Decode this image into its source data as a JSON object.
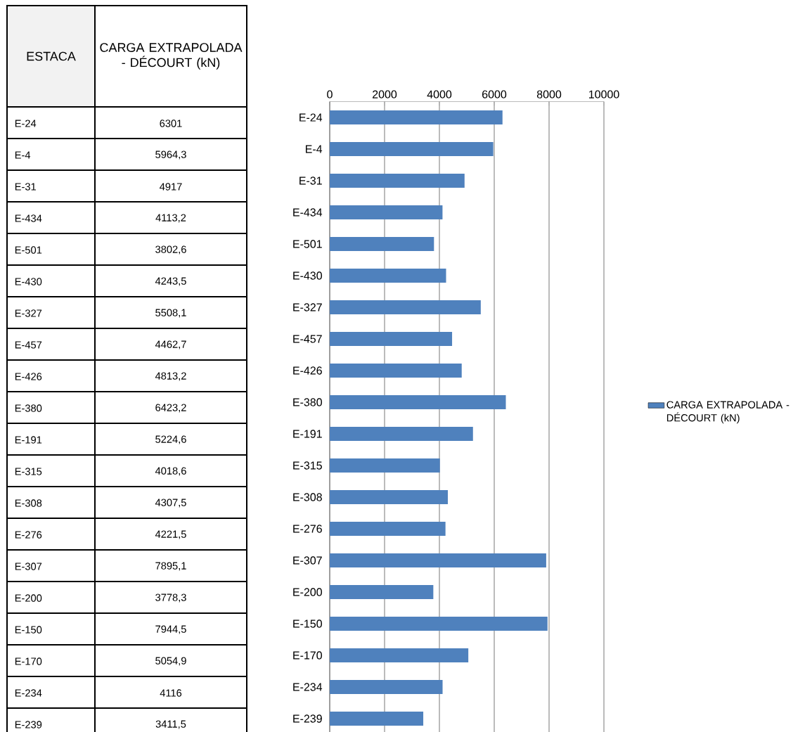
{
  "chart_data": {
    "type": "bar",
    "orientation": "horizontal",
    "categories": [
      "E-24",
      "E-4",
      "E-31",
      "E-434",
      "E-501",
      "E-430",
      "E-327",
      "E-457",
      "E-426",
      "E-380",
      "E-191",
      "E-315",
      "E-308",
      "E-276",
      "E-307",
      "E-200",
      "E-150",
      "E-170",
      "E-234",
      "E-239"
    ],
    "series": [
      {
        "name": "CARGA EXTRAPOLADA - DÉCOURT (kN)",
        "color": "#4f81bd",
        "values": [
          6301,
          5964.3,
          4917,
          4113.2,
          3802.6,
          4243.5,
          5508.1,
          4462.7,
          4813.2,
          6423.2,
          5224.6,
          4018.6,
          4307.5,
          4221.5,
          7895.1,
          3778.3,
          7944.5,
          5054.9,
          4116,
          3411.5
        ]
      }
    ],
    "value_labels": [
      "6301",
      "5964,3",
      "4917",
      "4113,2",
      "3802,6",
      "4243,5",
      "5508,1",
      "4462,7",
      "4813,2",
      "6423,2",
      "5224,6",
      "4018,6",
      "4307,5",
      "4221,5",
      "7895,1",
      "3778,3",
      "7944,5",
      "5054,9",
      "4116",
      "3411,5"
    ],
    "annotations": [
      "ESTACA"
    ],
    "xlim": [
      0,
      10000
    ],
    "xticks": [
      0,
      2000,
      4000,
      6000,
      8000,
      10000
    ],
    "grid": "x",
    "legend": "right"
  }
}
